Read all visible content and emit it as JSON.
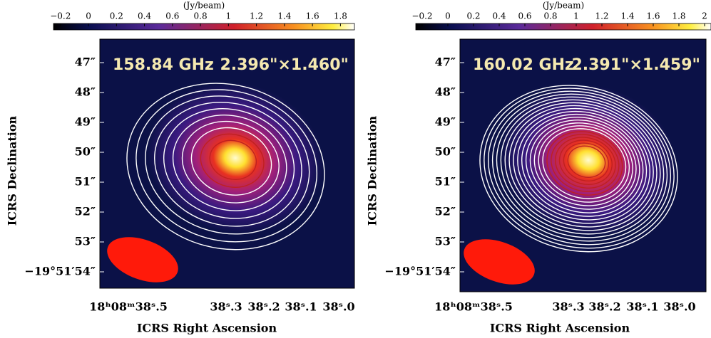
{
  "panels": [
    {
      "frequency": "158.84 GHz",
      "beam": "2.396\"×1.460\"",
      "colorbar": {
        "unit": "(Jy/beam)",
        "range": [
          -0.25,
          1.9
        ],
        "ticks": [
          {
            "value": -0.2,
            "label": "−0.2"
          },
          0,
          0.2,
          0.4,
          0.6,
          0.8,
          1,
          1.2,
          1.4,
          1.6,
          1.8
        ]
      },
      "y_title": "ICRS Declination",
      "x_title": "ICRS Right Ascension",
      "y_ticks": [
        "47″",
        "48″",
        "49″",
        "50″",
        "51″",
        "52″",
        "53″",
        "−19°51′54″"
      ],
      "x_ticks": [
        "18ʰ08ᵐ38ˢ.5",
        "38ˢ.3",
        "38ˢ.2",
        "38ˢ.1",
        "38ˢ.0"
      ]
    },
    {
      "frequency": "160.02 GHz",
      "beam": "2.391\"×1.459\"",
      "colorbar": {
        "unit": "(Jy/beam)",
        "range": [
          -0.25,
          2.05
        ],
        "ticks": [
          {
            "value": -0.2,
            "label": "−0.2"
          },
          0,
          0.2,
          0.4,
          0.6,
          0.8,
          1,
          1.2,
          1.4,
          1.6,
          1.8,
          2
        ]
      },
      "y_title": "ICRS Declination",
      "x_title": "ICRS Right Ascension",
      "y_ticks": [
        "47″",
        "48″",
        "49″",
        "50″",
        "51″",
        "52″",
        "53″",
        "−19°51′54″"
      ],
      "x_ticks": [
        "18ʰ08ᵐ38ˢ.5",
        "38ˢ.3",
        "38ˢ.2",
        "38ˢ.1",
        "38ˢ.0"
      ]
    }
  ]
}
